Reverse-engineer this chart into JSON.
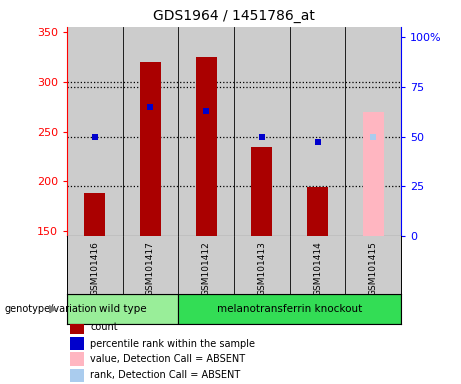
{
  "title": "GDS1964 / 1451786_at",
  "samples": [
    "GSM101416",
    "GSM101417",
    "GSM101412",
    "GSM101413",
    "GSM101414",
    "GSM101415"
  ],
  "count_values": [
    188,
    320,
    325,
    234,
    194,
    null
  ],
  "percentile_values": [
    50,
    65,
    63,
    50,
    47,
    null
  ],
  "absent_count_value": 270,
  "absent_rank_value": 50,
  "absent_sample_index": 5,
  "ylim_left": [
    145,
    355
  ],
  "ylim_right": [
    0,
    105
  ],
  "left_ticks": [
    150,
    200,
    250,
    300,
    350
  ],
  "right_ticks": [
    0,
    25,
    50,
    75,
    100
  ],
  "right_tick_labels": [
    "0",
    "25",
    "50",
    "75",
    "100%"
  ],
  "bar_color": "#AA0000",
  "absent_bar_color": "#FFB6C1",
  "dot_color": "#0000CC",
  "absent_dot_color": "#AACCEE",
  "plot_bg_color": "#cccccc",
  "xlabels_bg_color": "#cccccc",
  "background_color": "#ffffff",
  "wt_color": "#99EE99",
  "ko_color": "#33DD55",
  "bar_width": 0.38,
  "wt_label": "wild type",
  "ko_label": "melanotransferrin knockout",
  "genotype_label": "genotype/variation",
  "legend_labels": [
    "count",
    "percentile rank within the sample",
    "value, Detection Call = ABSENT",
    "rank, Detection Call = ABSENT"
  ],
  "legend_colors": [
    "#AA0000",
    "#0000CC",
    "#FFB6C1",
    "#AACCEE"
  ],
  "dotline_pcts": [
    25,
    50,
    75,
    300
  ]
}
